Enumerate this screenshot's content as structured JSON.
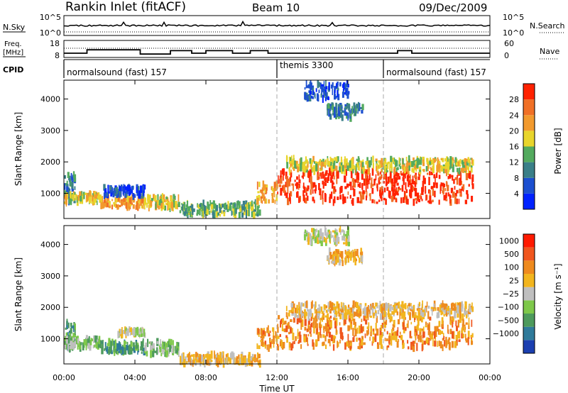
{
  "header": {
    "title": "Rankin Inlet (fitACF)",
    "beam": "Beam 10",
    "date": "09/Dec/2009"
  },
  "noise_panel": {
    "left_label": "N.Sky",
    "right_label": "N.Search",
    "left_ticks": [
      "10^5",
      "10^0"
    ],
    "right_ticks": [
      "10^5",
      "10^0"
    ]
  },
  "freq_panel": {
    "left_label_1": "Freq.",
    "left_label_2": "[MHz]",
    "right_label": "Nave",
    "left_ticks": [
      "18",
      "8"
    ],
    "right_ticks": [
      "60",
      "0"
    ]
  },
  "cpid_panel": {
    "label": "CPID",
    "modes": [
      {
        "name": "normalsound (fast) 157",
        "start_h": 0,
        "end_h": 12
      },
      {
        "name": "themis 3300",
        "start_h": 12,
        "end_h": 18
      },
      {
        "name": "normalsound (fast) 157",
        "start_h": 18,
        "end_h": 24
      }
    ]
  },
  "axes": {
    "xlabel": "Time UT",
    "x_ticks": [
      "00:00",
      "04:00",
      "08:00",
      "12:00",
      "16:00",
      "20:00",
      "00:00"
    ],
    "ylabel": "Slant Range [km]",
    "y_ticks": [
      "1000",
      "2000",
      "3000",
      "4000"
    ]
  },
  "power_colorbar": {
    "label": "Power [dB]",
    "ticks": [
      "4",
      "8",
      "12",
      "16",
      "20",
      "24",
      "28"
    ],
    "colors": [
      "#0022ff",
      "#1c4fd0",
      "#3a7f88",
      "#53aa5e",
      "#e8d52c",
      "#f29a2e",
      "#f07026",
      "#ff2200"
    ]
  },
  "velocity_colorbar": {
    "label": "Velocity [m s⁻¹]",
    "ticks": [
      "1000",
      "500",
      "100",
      "25",
      "−25",
      "−100",
      "−500",
      "−1000"
    ],
    "colors": [
      "#1b3fb0",
      "#2f7a9a",
      "#4d9a5c",
      "#7ec84a",
      "#bfbfbf",
      "#f2b51e",
      "#ee8a1e",
      "#f0561e",
      "#ff1a00"
    ]
  },
  "chart_data": {
    "type": "heatmap",
    "x_unit": "hours UT",
    "xlim": [
      0,
      24
    ],
    "ylim": [
      200,
      4600
    ],
    "panels": [
      {
        "quantity": "Power",
        "regions": [
          {
            "t": [
              0.0,
              0.6
            ],
            "r": [
              600,
              1600
            ],
            "level": 2
          },
          {
            "t": [
              0.0,
              2.0
            ],
            "r": [
              700,
              1000
            ],
            "level": 4
          },
          {
            "t": [
              2.0,
              4.5
            ],
            "r": [
              550,
              900
            ],
            "level": 5
          },
          {
            "t": [
              2.2,
              4.5
            ],
            "r": [
              900,
              1200
            ],
            "level": 1
          },
          {
            "t": [
              4.5,
              6.5
            ],
            "r": [
              500,
              900
            ],
            "level": 4
          },
          {
            "t": [
              6.5,
              11.0
            ],
            "r": [
              300,
              700
            ],
            "level": 3
          },
          {
            "t": [
              10.8,
              12.0
            ],
            "r": [
              700,
              1300
            ],
            "level": 5
          },
          {
            "t": [
              12.0,
              23.0
            ],
            "r": [
              700,
              1700
            ],
            "level": 7
          },
          {
            "t": [
              12.5,
              23.0
            ],
            "r": [
              1700,
              2100
            ],
            "level": 4
          },
          {
            "t": [
              14.8,
              16.8
            ],
            "r": [
              3400,
              3800
            ],
            "level": 2
          },
          {
            "t": [
              13.5,
              16.0
            ],
            "r": [
              4000,
              4500
            ],
            "level": 1
          }
        ]
      },
      {
        "quantity": "Velocity",
        "regions": [
          {
            "t": [
              0.0,
              0.6
            ],
            "r": [
              600,
              1600
            ],
            "level": 2
          },
          {
            "t": [
              0.0,
              2.0
            ],
            "r": [
              700,
              1000
            ],
            "level": 3
          },
          {
            "t": [
              2.0,
              4.5
            ],
            "r": [
              550,
              900
            ],
            "level": 2
          },
          {
            "t": [
              3.0,
              4.5
            ],
            "r": [
              1100,
              1300
            ],
            "level": 4
          },
          {
            "t": [
              4.5,
              6.5
            ],
            "r": [
              500,
              900
            ],
            "level": 3
          },
          {
            "t": [
              6.5,
              11.0
            ],
            "r": [
              200,
              500
            ],
            "level": 5
          },
          {
            "t": [
              10.8,
              12.0
            ],
            "r": [
              700,
              1300
            ],
            "level": 6
          },
          {
            "t": [
              12.0,
              23.0
            ],
            "r": [
              700,
              1700
            ],
            "level": 6
          },
          {
            "t": [
              12.5,
              23.0
            ],
            "r": [
              1700,
              2100
            ],
            "level": 5
          },
          {
            "t": [
              14.8,
              16.8
            ],
            "r": [
              3400,
              3800
            ],
            "level": 5
          },
          {
            "t": [
              13.5,
              16.0
            ],
            "r": [
              4000,
              4500
            ],
            "level": 4
          }
        ]
      }
    ],
    "freq_segments": [
      [
        0,
        1.3,
        10.5
      ],
      [
        1.3,
        4.3,
        12.5
      ],
      [
        4.3,
        6.0,
        10.0
      ],
      [
        6.0,
        7.2,
        12.0
      ],
      [
        7.2,
        8.0,
        10.5
      ],
      [
        8.0,
        9.5,
        12.0
      ],
      [
        9.5,
        10.5,
        10.5
      ],
      [
        10.5,
        11.5,
        12.0
      ],
      [
        11.5,
        12.5,
        10.5
      ],
      [
        12.5,
        18.8,
        10.5
      ],
      [
        18.8,
        19.6,
        12.0
      ],
      [
        19.6,
        24,
        10.5
      ]
    ]
  }
}
